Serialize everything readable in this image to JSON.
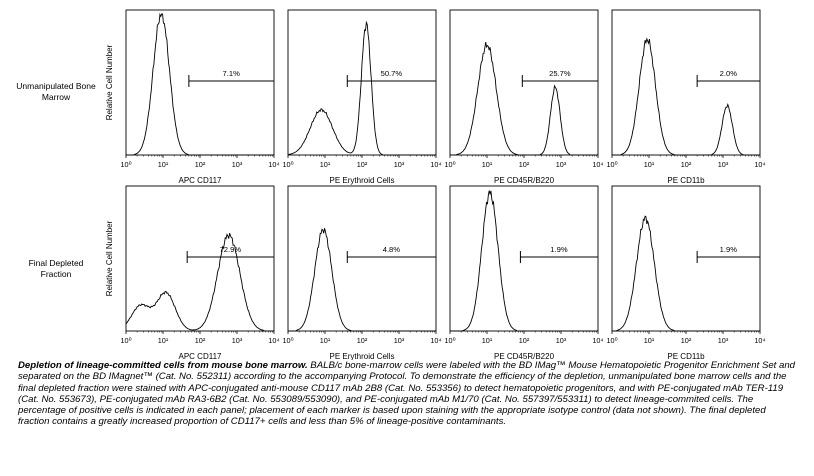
{
  "row_labels": [
    [
      "Unmanipulated Bone",
      "Marrow"
    ],
    [
      "Final Depleted",
      "Fraction"
    ]
  ],
  "ylabel": "Relative Cell Number",
  "caption": {
    "title": "Depletion of lineage-committed cells from mouse bone marrow.",
    "body": " BALB/c bone-marrow cells were labeled with the BD IMag™ Mouse Hematopoietic Progenitor Enrichment Set and separated on the BD IMagnet™ (Cat. No. 552311) according to the accompanying Protocol. To demonstrate the efficiency of the depletion, unmanipulated bone marrow cells and the final depleted fraction were stained with APC-conjugated anti-mouse CD117 mAb 2B8 (Cat. No. 553356) to detect hematopoietic progenitors, and with PE-conjugated mAb TER-119 (Cat. No. 553673), PE-conjugated mAb RA3-6B2 (Cat. No. 553089/553090), and PE-conjugated mAb M1/70 (Cat. No. 557397/553311) to detect lineage-commited cells. The percentage of positive cells is indicated in each panel; placement of each marker is based upon staining with the appropriate isotype control (data not shown). The final depleted fraction contains a greatly increased proportion of CD117+ cells and less than 5% of lineage-positive contaminants."
  },
  "chart_data": [
    {
      "type": "histogram",
      "row": 0,
      "col": 0,
      "xlabel": "APC CD117",
      "x_scale": "log",
      "xlim": [
        1,
        10000
      ],
      "x_ticks": [
        "10⁰",
        "10¹",
        "10²",
        "10³",
        "10⁴"
      ],
      "ylabel": "Relative Cell Number",
      "gate": {
        "label": "7.1%",
        "start": 50,
        "end": 10000
      },
      "peaks": [
        {
          "center": 9,
          "height": 1.0,
          "width": 0.22
        }
      ]
    },
    {
      "type": "histogram",
      "row": 0,
      "col": 1,
      "xlabel": "PE Erythroid Cells",
      "x_scale": "log",
      "xlim": [
        1,
        10000
      ],
      "x_ticks": [
        "10⁰",
        "10¹",
        "10²",
        "10³",
        "10⁴"
      ],
      "gate": {
        "label": "50.7%",
        "start": 40,
        "end": 10000
      },
      "peaks": [
        {
          "center": 8,
          "height": 0.32,
          "width": 0.3
        },
        {
          "center": 130,
          "height": 0.93,
          "width": 0.13
        }
      ]
    },
    {
      "type": "histogram",
      "row": 0,
      "col": 2,
      "xlabel": "PE CD45R/B220",
      "x_scale": "log",
      "xlim": [
        1,
        10000
      ],
      "x_ticks": [
        "10⁰",
        "10¹",
        "10²",
        "10³",
        "10⁴"
      ],
      "gate": {
        "label": "25.7%",
        "start": 90,
        "end": 10000
      },
      "peaks": [
        {
          "center": 10,
          "height": 0.78,
          "width": 0.25
        },
        {
          "center": 700,
          "height": 0.48,
          "width": 0.13
        }
      ]
    },
    {
      "type": "histogram",
      "row": 0,
      "col": 3,
      "xlabel": "PE CD11b",
      "x_scale": "log",
      "xlim": [
        1,
        10000
      ],
      "x_ticks": [
        "10⁰",
        "10¹",
        "10²",
        "10³",
        "10⁴"
      ],
      "gate": {
        "label": "2.0%",
        "start": 200,
        "end": 10000
      },
      "peaks": [
        {
          "center": 9,
          "height": 0.82,
          "width": 0.22
        },
        {
          "center": 1300,
          "height": 0.35,
          "width": 0.14
        }
      ]
    },
    {
      "type": "histogram",
      "row": 1,
      "col": 0,
      "xlabel": "APC CD117",
      "x_scale": "log",
      "xlim": [
        1,
        10000
      ],
      "x_ticks": [
        "10⁰",
        "10¹",
        "10²",
        "10³",
        "10⁴"
      ],
      "ylabel": "Relative Cell Number",
      "gate": {
        "label": "72.9%",
        "start": 45,
        "end": 10000
      },
      "peaks": [
        {
          "center": 2.5,
          "height": 0.18,
          "width": 0.25
        },
        {
          "center": 12,
          "height": 0.27,
          "width": 0.25
        },
        {
          "center": 600,
          "height": 0.68,
          "width": 0.3
        }
      ]
    },
    {
      "type": "histogram",
      "row": 1,
      "col": 1,
      "xlabel": "PE Erythroid Cells",
      "x_scale": "log",
      "xlim": [
        1,
        10000
      ],
      "x_ticks": [
        "10⁰",
        "10¹",
        "10²",
        "10³",
        "10⁴"
      ],
      "gate": {
        "label": "4.8%",
        "start": 40,
        "end": 10000
      },
      "peaks": [
        {
          "center": 9,
          "height": 0.72,
          "width": 0.23
        }
      ]
    },
    {
      "type": "histogram",
      "row": 1,
      "col": 2,
      "xlabel": "PE CD45R/B220",
      "x_scale": "log",
      "xlim": [
        1,
        10000
      ],
      "x_ticks": [
        "10⁰",
        "10¹",
        "10²",
        "10³",
        "10⁴"
      ],
      "gate": {
        "label": "1.9%",
        "start": 80,
        "end": 10000
      },
      "peaks": [
        {
          "center": 12,
          "height": 0.98,
          "width": 0.22
        }
      ]
    },
    {
      "type": "histogram",
      "row": 1,
      "col": 3,
      "xlabel": "PE CD11b",
      "x_scale": "log",
      "xlim": [
        1,
        10000
      ],
      "x_ticks": [
        "10⁰",
        "10¹",
        "10²",
        "10³",
        "10⁴"
      ],
      "gate": {
        "label": "1.9%",
        "start": 200,
        "end": 10000
      },
      "peaks": [
        {
          "center": 8,
          "height": 0.8,
          "width": 0.24
        }
      ]
    }
  ]
}
